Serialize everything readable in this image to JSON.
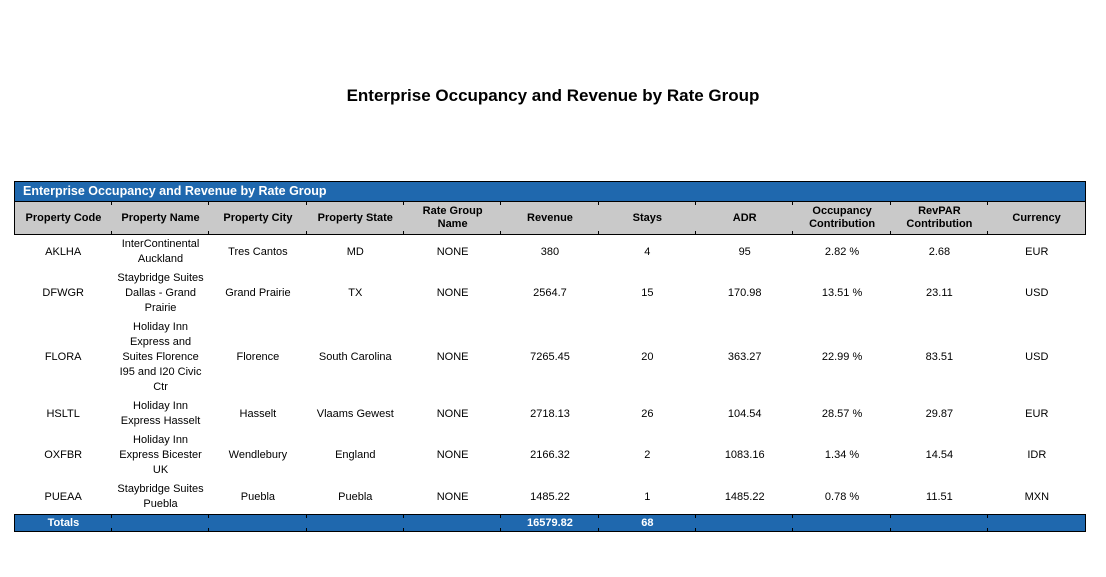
{
  "page": {
    "main_title": "Enterprise Occupancy and Revenue by Rate Group"
  },
  "table": {
    "title": "Enterprise Occupancy and Revenue by Rate Group",
    "columns": [
      "Property Code",
      "Property Name",
      "Property City",
      "Property State",
      "Rate Group Name",
      "Revenue",
      "Stays",
      "ADR",
      "Occupancy Contribution",
      "RevPAR Contribution",
      "Currency"
    ],
    "rows": [
      [
        "AKLHA",
        "InterContinental Auckland",
        "Tres Cantos",
        "MD",
        "NONE",
        "380",
        "4",
        "95",
        "2.82 %",
        "2.68",
        "EUR"
      ],
      [
        "DFWGR",
        "Staybridge Suites Dallas - Grand Prairie",
        "Grand Prairie",
        "TX",
        "NONE",
        "2564.7",
        "15",
        "170.98",
        "13.51 %",
        "23.11",
        "USD"
      ],
      [
        "FLORA",
        "Holiday Inn Express and Suites Florence I95 and I20 Civic Ctr",
        "Florence",
        "South Carolina",
        "NONE",
        "7265.45",
        "20",
        "363.27",
        "22.99 %",
        "83.51",
        "USD"
      ],
      [
        "HSLTL",
        "Holiday Inn Express Hasselt",
        "Hasselt",
        "Vlaams Gewest",
        "NONE",
        "2718.13",
        "26",
        "104.54",
        "28.57 %",
        "29.87",
        "EUR"
      ],
      [
        "OXFBR",
        "Holiday Inn Express Bicester UK",
        "Wendlebury",
        "England",
        "NONE",
        "2166.32",
        "2",
        "1083.16",
        "1.34 %",
        "14.54",
        "IDR"
      ],
      [
        "PUEAA",
        "Staybridge Suites Puebla",
        "Puebla",
        "Puebla",
        "NONE",
        "1485.22",
        "1",
        "1485.22",
        "0.78 %",
        "11.51",
        "MXN"
      ]
    ],
    "totals_row": [
      "Totals",
      "",
      "",
      "",
      "",
      "16579.82",
      "68",
      "",
      "",
      "",
      ""
    ]
  },
  "colors": {
    "header_blue": "#1F68AE",
    "header_gray": "#C9C9C9",
    "border_black": "#000000",
    "title_text_white": "#FFFFFF"
  }
}
